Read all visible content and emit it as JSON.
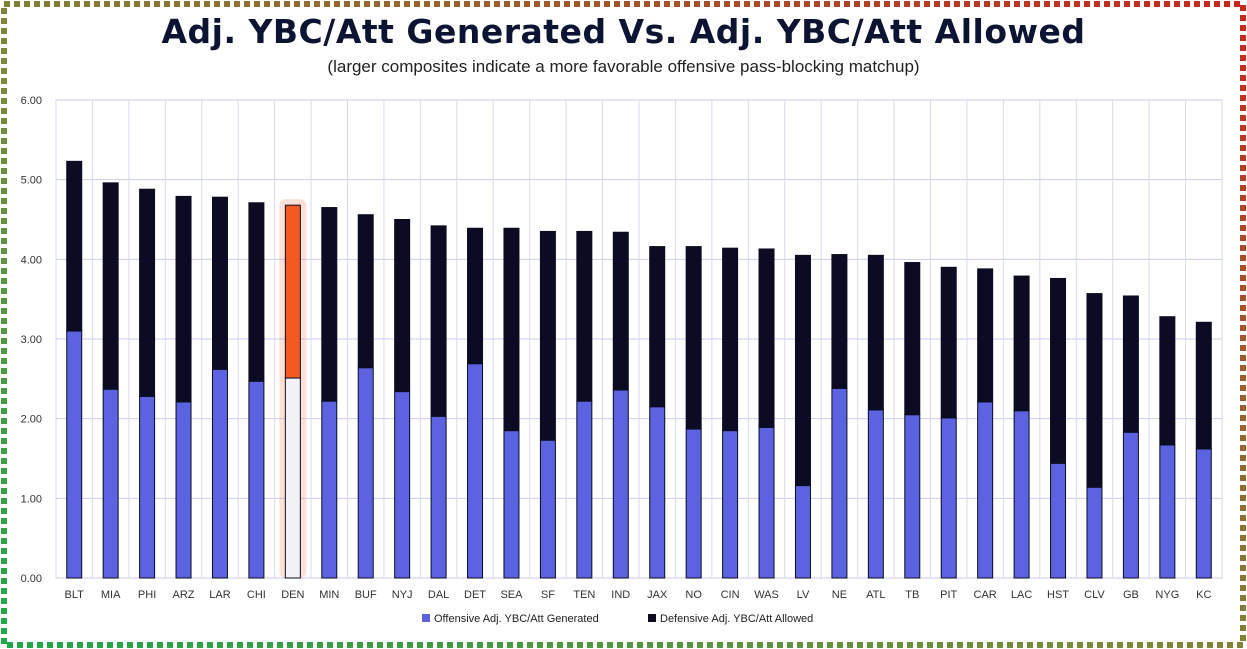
{
  "chart_data": {
    "type": "bar",
    "stacked": true,
    "title": "Adj. YBC/Att Generated Vs. Adj. YBC/Att Allowed",
    "subtitle": "(larger composites indicate a more favorable offensive pass-blocking matchup)",
    "categories": [
      "BLT",
      "MIA",
      "PHI",
      "ARZ",
      "LAR",
      "CHI",
      "DEN",
      "MIN",
      "BUF",
      "NYJ",
      "DAL",
      "DET",
      "SEA",
      "SF",
      "TEN",
      "IND",
      "JAX",
      "NO",
      "CIN",
      "WAS",
      "LV",
      "NE",
      "ATL",
      "TB",
      "PIT",
      "CAR",
      "LAC",
      "HST",
      "CLV",
      "GB",
      "NYG",
      "KC"
    ],
    "series": [
      {
        "name": "Offensive Adj. YBC/Att Generated",
        "color": "#5b63e0",
        "values": [
          3.1,
          2.37,
          2.28,
          2.21,
          2.62,
          2.47,
          2.51,
          2.22,
          2.64,
          2.34,
          2.03,
          2.69,
          1.85,
          1.73,
          2.22,
          2.36,
          2.15,
          1.87,
          1.85,
          1.89,
          1.16,
          2.38,
          2.11,
          2.05,
          2.01,
          2.21,
          2.1,
          1.44,
          1.14,
          1.83,
          1.67,
          1.62
        ]
      },
      {
        "name": "Defensive Adj. YBC/Att Allowed",
        "color": "#0b0c24",
        "values": [
          2.13,
          2.59,
          2.6,
          2.58,
          2.16,
          2.24,
          2.17,
          2.43,
          1.92,
          2.16,
          2.39,
          1.7,
          2.54,
          2.62,
          2.13,
          1.98,
          2.01,
          2.29,
          2.29,
          2.24,
          2.89,
          1.68,
          1.94,
          1.91,
          1.89,
          1.67,
          1.69,
          2.32,
          2.43,
          1.71,
          1.61,
          1.59
        ]
      }
    ],
    "highlight": {
      "category": "DEN",
      "color": "#f25a22"
    },
    "ylim": [
      0,
      6
    ],
    "yticks": [
      "0.00",
      "1.00",
      "2.00",
      "3.00",
      "4.00",
      "5.00",
      "6.00"
    ],
    "grid": true,
    "legend_position": "bottom"
  }
}
